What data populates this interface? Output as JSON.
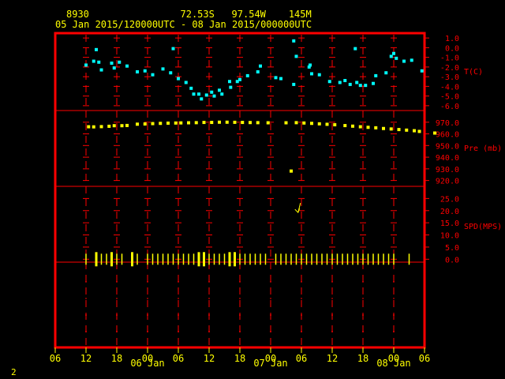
{
  "header": {
    "station": "8930",
    "lat": "72.53S",
    "lon": "97.54W",
    "elev": "145M",
    "range": "05 Jan 2015/120000UTC - 08 Jan 2015/000000UTC"
  },
  "footer_number": "2",
  "colors": {
    "frame": "#ff0000",
    "grid": "#ff0000",
    "axis_text": "#ff0000",
    "time_text": "#ffff00",
    "temp": "#00ffff",
    "pres": "#ffff00",
    "wind": "#ffff00"
  },
  "chart_data": {
    "type": "scatter",
    "x_tick_labels": [
      "06",
      "12",
      "18",
      "00",
      "06",
      "12",
      "18",
      "00",
      "06",
      "12",
      "18",
      "00",
      "06"
    ],
    "x_tick_hours": [
      6,
      12,
      18,
      24,
      30,
      36,
      42,
      48,
      54,
      60,
      66,
      72,
      78
    ],
    "day_labels": [
      {
        "label": "06 Jan",
        "hour": 24
      },
      {
        "label": "07 Jan",
        "hour": 48
      },
      {
        "label": "08 Jan",
        "hour": 72
      }
    ],
    "panels": [
      {
        "name": "temp",
        "label": "T(C)",
        "ylim": [
          -6.5,
          1.5
        ],
        "tick_values": [
          1.0,
          0.0,
          -1.0,
          -2.0,
          -3.0,
          -4.0,
          -5.0,
          -6.0
        ],
        "tick_labels": [
          "1.0",
          "0.0",
          "-1.0",
          "-2.0",
          "-3.0",
          "-4.0",
          "-5.0",
          "-6.0"
        ],
        "points": [
          [
            12.0,
            -1.8
          ],
          [
            13.5,
            -1.4
          ],
          [
            14.0,
            -0.2
          ],
          [
            14.5,
            -1.5
          ],
          [
            15.0,
            -2.3
          ],
          [
            17.0,
            -1.6
          ],
          [
            17.5,
            -2.1
          ],
          [
            18.5,
            -1.5
          ],
          [
            20.0,
            -1.9
          ],
          [
            22.0,
            -2.5
          ],
          [
            23.5,
            -2.4
          ],
          [
            25.0,
            -2.8
          ],
          [
            27.0,
            -2.2
          ],
          [
            28.5,
            -2.6
          ],
          [
            29.0,
            -0.1
          ],
          [
            30.0,
            -3.2
          ],
          [
            31.5,
            -3.6
          ],
          [
            32.5,
            -4.2
          ],
          [
            33.0,
            -4.8
          ],
          [
            34.0,
            -4.8
          ],
          [
            34.5,
            -5.3
          ],
          [
            35.5,
            -4.9
          ],
          [
            36.5,
            -4.6
          ],
          [
            37.0,
            -5.0
          ],
          [
            38.0,
            -4.4
          ],
          [
            38.5,
            -4.8
          ],
          [
            40.0,
            -3.5
          ],
          [
            40.2,
            -4.1
          ],
          [
            41.5,
            -3.5
          ],
          [
            42.0,
            -3.3
          ],
          [
            43.5,
            -2.9
          ],
          [
            45.5,
            -2.5
          ],
          [
            46.0,
            -1.9
          ],
          [
            49.0,
            -3.1
          ],
          [
            50.0,
            -3.2
          ],
          [
            52.5,
            -3.8
          ],
          [
            52.5,
            0.7
          ],
          [
            53.0,
            -0.9
          ],
          [
            55.5,
            -2.0
          ],
          [
            55.7,
            -1.8
          ],
          [
            56.0,
            -2.7
          ],
          [
            57.5,
            -2.8
          ],
          [
            59.5,
            -3.5
          ],
          [
            61.5,
            -3.6
          ],
          [
            62.5,
            -3.4
          ],
          [
            63.5,
            -3.8
          ],
          [
            64.5,
            -0.1
          ],
          [
            64.8,
            -3.6
          ],
          [
            65.5,
            -3.9
          ],
          [
            66.5,
            -3.9
          ],
          [
            68.0,
            -3.7
          ],
          [
            68.5,
            -2.9
          ],
          [
            70.5,
            -2.6
          ],
          [
            71.5,
            -0.9
          ],
          [
            72.0,
            -0.6
          ],
          [
            72.5,
            -1.1
          ],
          [
            74.0,
            -1.4
          ],
          [
            75.5,
            -1.3
          ],
          [
            77.5,
            -2.4
          ]
        ]
      },
      {
        "name": "pres",
        "label": "Pre (mb)",
        "ylim": [
          915,
          980
        ],
        "tick_values": [
          970.0,
          960.0,
          950.0,
          940.0,
          930.0,
          920.0
        ],
        "tick_labels": [
          "970.0",
          "960.0",
          "950.0",
          "940.0",
          "930.0",
          "920.0"
        ],
        "points": [
          [
            12.5,
            966.1
          ],
          [
            13.5,
            966.0
          ],
          [
            15.0,
            966.2
          ],
          [
            16.5,
            966.5
          ],
          [
            17.5,
            967.0
          ],
          [
            19.0,
            967.0
          ],
          [
            20.0,
            967.2
          ],
          [
            22.0,
            968.3
          ],
          [
            23.5,
            968.5
          ],
          [
            25.0,
            968.8
          ],
          [
            26.5,
            969.0
          ],
          [
            28.0,
            969.2
          ],
          [
            29.5,
            969.3
          ],
          [
            30.5,
            969.4
          ],
          [
            32.0,
            969.5
          ],
          [
            33.5,
            969.6
          ],
          [
            35.0,
            969.8
          ],
          [
            36.5,
            969.8
          ],
          [
            38.0,
            970.0
          ],
          [
            39.5,
            970.0
          ],
          [
            41.0,
            969.9
          ],
          [
            42.5,
            969.8
          ],
          [
            44.0,
            969.7
          ],
          [
            45.5,
            969.6
          ],
          [
            47.5,
            969.5
          ],
          [
            51.0,
            969.5
          ],
          [
            52.0,
            928.1
          ],
          [
            53.0,
            969.6
          ],
          [
            54.5,
            969.3
          ],
          [
            56.0,
            969.0
          ],
          [
            57.5,
            968.6
          ],
          [
            59.0,
            968.2
          ],
          [
            60.5,
            967.8
          ],
          [
            62.5,
            967.1
          ],
          [
            64.0,
            966.6
          ],
          [
            65.5,
            966.1
          ],
          [
            67.0,
            965.6
          ],
          [
            68.5,
            965.2
          ],
          [
            70.0,
            964.6
          ],
          [
            71.5,
            964.2
          ],
          [
            73.0,
            963.7
          ],
          [
            74.5,
            963.2
          ],
          [
            76.0,
            962.7
          ],
          [
            77.0,
            962.1
          ],
          [
            80.0,
            960.7
          ]
        ]
      },
      {
        "name": "wind",
        "label": "SPD(MPS)",
        "ylim": [
          -2.5,
          30
        ],
        "tick_values": [
          25.0,
          20.0,
          15.0,
          10.0,
          5.0,
          0.0
        ],
        "tick_labels": [
          "25.0",
          "20.0",
          "15.0",
          "10.0",
          "5.0",
          "0.0"
        ],
        "barb_hours": [
          12,
          14,
          15,
          16,
          17,
          18,
          19,
          21,
          22,
          24,
          25,
          26,
          27,
          28,
          29,
          30,
          31,
          32,
          33,
          34,
          35,
          36,
          37,
          38,
          39,
          40,
          41,
          42,
          43,
          44,
          45,
          46,
          47,
          49,
          50,
          51,
          52,
          53,
          54,
          55,
          56,
          57,
          58,
          59,
          60,
          61,
          62,
          63,
          64,
          65,
          66,
          67,
          68,
          69,
          70,
          71,
          72,
          75
        ],
        "barb_tall_hours": [
          14,
          17,
          21,
          34,
          35,
          40,
          41
        ],
        "arrow": {
          "hour": 53.5,
          "speed": 21.2
        }
      }
    ]
  }
}
